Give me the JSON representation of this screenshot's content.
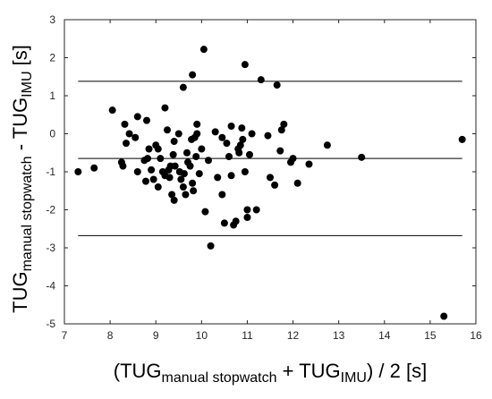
{
  "chart_data": {
    "type": "scatter",
    "title": "",
    "xlabel": {
      "parts": [
        {
          "text": "(TUG",
          "sub": false
        },
        {
          "text": "manual stopwatch",
          "sub": true
        },
        {
          "text": " + TUG",
          "sub": false
        },
        {
          "text": "IMU",
          "sub": true
        },
        {
          "text": ") / 2 [s]",
          "sub": false
        }
      ]
    },
    "ylabel": {
      "parts": [
        {
          "text": "TUG",
          "sub": false
        },
        {
          "text": "manual stopwatch",
          "sub": true
        },
        {
          "text": " - TUG",
          "sub": false
        },
        {
          "text": "IMU",
          "sub": true
        },
        {
          "text": " [s]",
          "sub": false
        }
      ]
    },
    "xlim": [
      7,
      16
    ],
    "ylim": [
      -5,
      3
    ],
    "xticks": [
      7,
      8,
      9,
      10,
      11,
      12,
      13,
      14,
      15,
      16
    ],
    "yticks": [
      3,
      2,
      1,
      0,
      -1,
      -2,
      -3,
      -4,
      -5
    ],
    "grid": false,
    "reference_lines": [
      1.38,
      -0.65,
      -2.68
    ],
    "marker_color": "#000000",
    "line_color": "#000000",
    "points": [
      [
        7.3,
        -1.0
      ],
      [
        7.65,
        -0.9
      ],
      [
        8.05,
        0.62
      ],
      [
        8.25,
        -0.75
      ],
      [
        8.28,
        -0.85
      ],
      [
        8.32,
        0.25
      ],
      [
        8.35,
        -0.25
      ],
      [
        8.42,
        0.0
      ],
      [
        8.55,
        -0.1
      ],
      [
        8.6,
        0.45
      ],
      [
        8.6,
        -1.0
      ],
      [
        8.75,
        -0.7
      ],
      [
        8.78,
        -1.25
      ],
      [
        8.8,
        0.35
      ],
      [
        8.82,
        -0.65
      ],
      [
        8.85,
        -0.4
      ],
      [
        8.9,
        -0.95
      ],
      [
        8.95,
        -1.2
      ],
      [
        9.0,
        -0.3
      ],
      [
        9.05,
        -1.4
      ],
      [
        9.05,
        -0.4
      ],
      [
        9.1,
        -0.65
      ],
      [
        9.15,
        -1.0
      ],
      [
        9.2,
        -1.1
      ],
      [
        9.2,
        0.68
      ],
      [
        9.25,
        0.1
      ],
      [
        9.28,
        -0.95
      ],
      [
        9.3,
        -1.15
      ],
      [
        9.32,
        -0.85
      ],
      [
        9.35,
        -1.6
      ],
      [
        9.38,
        -0.55
      ],
      [
        9.4,
        -0.2
      ],
      [
        9.4,
        -1.75
      ],
      [
        9.42,
        -0.85
      ],
      [
        9.5,
        0.0
      ],
      [
        9.52,
        -1.0
      ],
      [
        9.55,
        -1.2
      ],
      [
        9.6,
        1.22
      ],
      [
        9.6,
        -1.4
      ],
      [
        9.62,
        -1.05
      ],
      [
        9.65,
        -1.6
      ],
      [
        9.68,
        -0.5
      ],
      [
        9.7,
        -0.75
      ],
      [
        9.75,
        -0.85
      ],
      [
        9.78,
        -0.15
      ],
      [
        9.8,
        1.55
      ],
      [
        9.8,
        -1.3
      ],
      [
        9.82,
        -1.5
      ],
      [
        9.85,
        -0.1
      ],
      [
        9.88,
        -0.6
      ],
      [
        9.9,
        0.0
      ],
      [
        9.9,
        0.25
      ],
      [
        9.95,
        -1.05
      ],
      [
        10.0,
        -0.4
      ],
      [
        10.05,
        2.22
      ],
      [
        10.08,
        -2.05
      ],
      [
        10.15,
        -0.7
      ],
      [
        10.2,
        -2.95
      ],
      [
        10.3,
        0.05
      ],
      [
        10.35,
        -1.15
      ],
      [
        10.45,
        -1.6
      ],
      [
        10.45,
        -0.1
      ],
      [
        10.5,
        -2.35
      ],
      [
        10.55,
        -0.25
      ],
      [
        10.6,
        -0.6
      ],
      [
        10.65,
        -1.1
      ],
      [
        10.65,
        0.2
      ],
      [
        10.7,
        -2.4
      ],
      [
        10.75,
        -2.3
      ],
      [
        10.8,
        -0.4
      ],
      [
        10.82,
        -0.5
      ],
      [
        10.85,
        -0.3
      ],
      [
        10.88,
        0.15
      ],
      [
        10.9,
        -0.15
      ],
      [
        10.95,
        1.82
      ],
      [
        10.95,
        -1.0
      ],
      [
        11.0,
        -2.0
      ],
      [
        11.0,
        -2.2
      ],
      [
        11.05,
        -0.55
      ],
      [
        11.1,
        0.0
      ],
      [
        11.2,
        -2.0
      ],
      [
        11.3,
        1.42
      ],
      [
        11.45,
        -0.05
      ],
      [
        11.5,
        -1.15
      ],
      [
        11.6,
        -1.35
      ],
      [
        11.65,
        1.28
      ],
      [
        11.72,
        -0.45
      ],
      [
        11.75,
        0.1
      ],
      [
        11.8,
        0.25
      ],
      [
        11.95,
        -0.75
      ],
      [
        12.0,
        -0.65
      ],
      [
        12.1,
        -1.3
      ],
      [
        12.35,
        -0.8
      ],
      [
        12.75,
        -0.3
      ],
      [
        13.5,
        -0.62
      ],
      [
        15.3,
        -4.8
      ],
      [
        15.7,
        -0.15
      ]
    ]
  }
}
